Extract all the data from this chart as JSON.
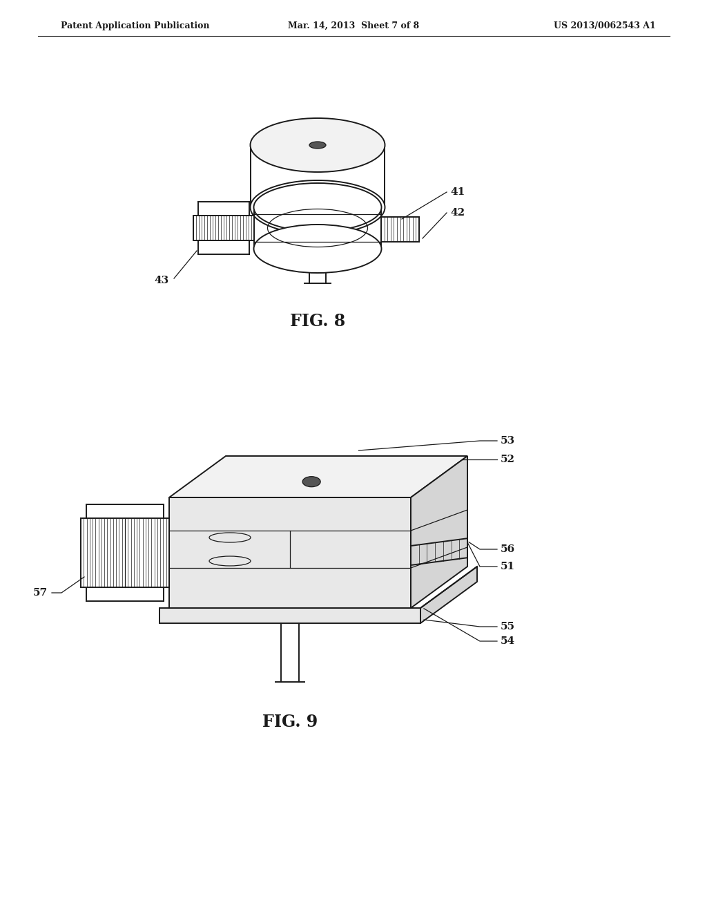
{
  "bg_color": "#ffffff",
  "line_color": "#1a1a1a",
  "header_left": "Patent Application Publication",
  "header_mid": "Mar. 14, 2013  Sheet 7 of 8",
  "header_right": "US 2013/0062543 A1",
  "fig8_label": "FIG. 8",
  "fig9_label": "FIG. 9",
  "lw": 1.4,
  "lw_thin": 0.9,
  "lw_hatch": 0.5
}
